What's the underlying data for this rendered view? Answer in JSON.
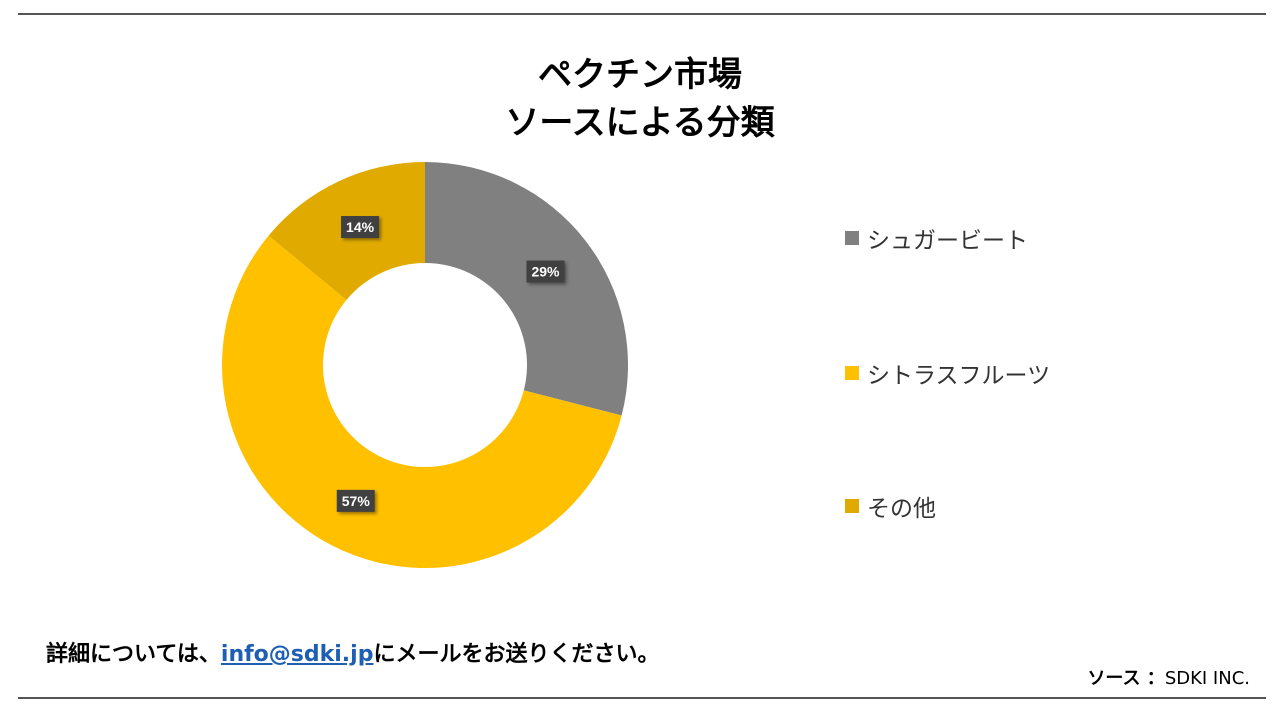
{
  "title": {
    "line1": "ペクチン市場",
    "line2": "ソースによる分類"
  },
  "chart_data": {
    "type": "pie",
    "donut": true,
    "categories": [
      "シュガービート",
      "シトラスフルーツ",
      "その他"
    ],
    "values": [
      29,
      57,
      14
    ],
    "data_labels": [
      "29%",
      "57%",
      "14%"
    ],
    "colors": [
      "#808080",
      "#ffc000",
      "#e0aa00"
    ],
    "legend_position": "right"
  },
  "legend": {
    "items": [
      {
        "label": "シュガービート",
        "color": "#808080"
      },
      {
        "label": "シトラスフルーツ",
        "color": "#ffc000"
      },
      {
        "label": "その他",
        "color": "#e0aa00"
      }
    ]
  },
  "footer": {
    "prefix": "詳細については、",
    "email": "info@sdki.jp",
    "suffix": "にメールをお送りください。"
  },
  "source": {
    "label": "ソース ：",
    "value": "SDKI INC."
  }
}
